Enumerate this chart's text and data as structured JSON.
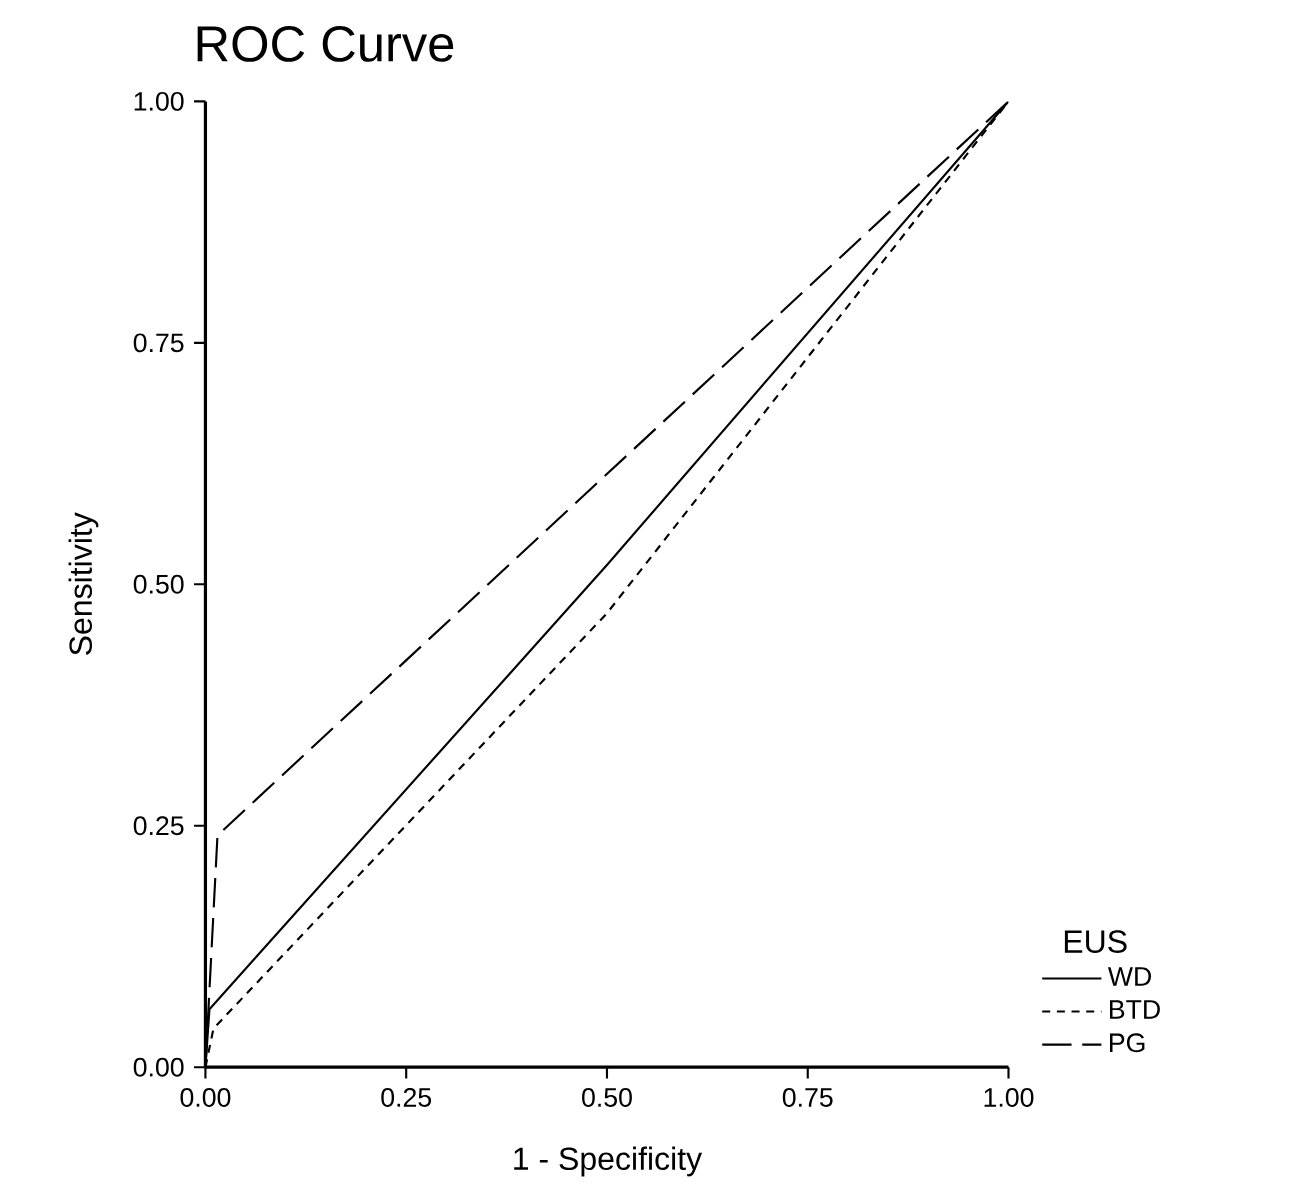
{
  "chart_data": {
    "type": "line",
    "title": "ROC Curve",
    "xlabel": "1 - Specificity",
    "ylabel": "Sensitivity",
    "legend_title": "EUS",
    "legend": "right",
    "xlim": [
      0,
      1
    ],
    "ylim": [
      0,
      1
    ],
    "xticks": [
      {
        "value": 0,
        "label": "0.00"
      },
      {
        "value": 0.25,
        "label": "0.25"
      },
      {
        "value": 0.5,
        "label": "0.50"
      },
      {
        "value": 0.75,
        "label": "0.75"
      },
      {
        "value": 1,
        "label": "1.00"
      }
    ],
    "yticks": [
      {
        "value": 0,
        "label": "0.00"
      },
      {
        "value": 0.25,
        "label": "0.25"
      },
      {
        "value": 0.5,
        "label": "0.50"
      },
      {
        "value": 0.75,
        "label": "0.75"
      },
      {
        "value": 1,
        "label": "1.00"
      }
    ],
    "series": [
      {
        "name": "WD",
        "color": "#000000",
        "line_style": "solid",
        "x": [
          0,
          0.005,
          0.5,
          1
        ],
        "values": [
          0,
          0.06,
          0.52,
          1
        ]
      },
      {
        "name": "BTD",
        "color": "#000000",
        "line_style": "dotted",
        "x": [
          0,
          0.01,
          0.5,
          1
        ],
        "values": [
          0,
          0.04,
          0.47,
          1
        ]
      },
      {
        "name": "PG",
        "color": "#000000",
        "line_style": "dashed",
        "x": [
          0,
          0.015,
          1
        ],
        "values": [
          0,
          0.24,
          1
        ]
      }
    ]
  }
}
